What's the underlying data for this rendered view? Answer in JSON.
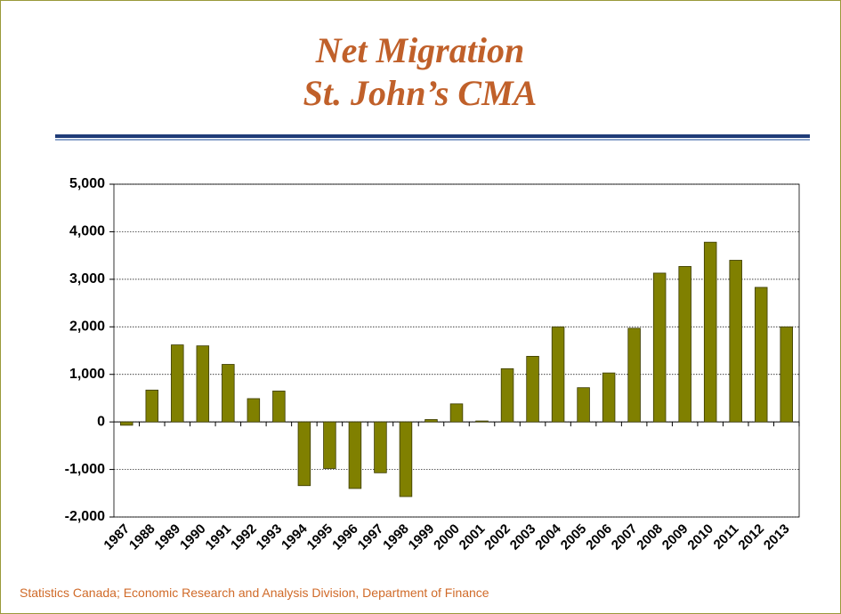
{
  "chart_data": {
    "type": "bar",
    "title": "Net Migration",
    "subtitle": "St. John’s CMA",
    "source": "Statistics Canada; Economic Research and Analysis Division, Department of Finance",
    "categories": [
      "1987",
      "1988",
      "1989",
      "1990",
      "1991",
      "1992",
      "1993",
      "1994",
      "1995",
      "1996",
      "1997",
      "1998",
      "1999",
      "2000",
      "2001",
      "2002",
      "2003",
      "2004",
      "2005",
      "2006",
      "2007",
      "2008",
      "2009",
      "2010",
      "2011",
      "2012",
      "2013"
    ],
    "values": [
      -70,
      670,
      1620,
      1600,
      1210,
      490,
      650,
      -1340,
      -980,
      -1400,
      -1070,
      -1570,
      50,
      380,
      20,
      1120,
      1380,
      2000,
      720,
      1030,
      1970,
      3130,
      3270,
      3780,
      3400,
      2830,
      2000
    ],
    "color": "#808000",
    "ylim": [
      -2000,
      5000
    ],
    "yticks": [
      {
        "value": -2000,
        "label": "-2,000"
      },
      {
        "value": -1000,
        "label": "-1,000"
      },
      0,
      {
        "value": 1000,
        "label": "1,000"
      },
      {
        "value": 2000,
        "label": "2,000"
      },
      {
        "value": 3000,
        "label": "3,000"
      },
      {
        "value": 4000,
        "label": "4,000"
      },
      {
        "value": 5000,
        "label": "5,000"
      }
    ],
    "grid": true
  }
}
